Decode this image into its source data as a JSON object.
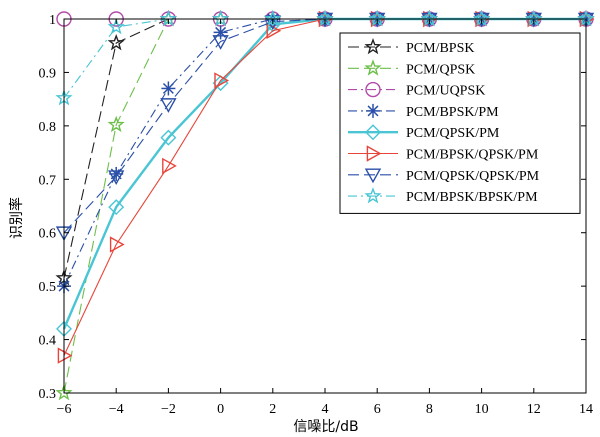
{
  "chart_data": {
    "type": "line",
    "title": "",
    "xlabel": "信噪比/dB",
    "ylabel": "识别率",
    "xlim": [
      -6,
      14
    ],
    "ylim": [
      0.3,
      1.0
    ],
    "xticks": [
      -6,
      -4,
      -2,
      0,
      2,
      4,
      6,
      8,
      10,
      12,
      14
    ],
    "xtick_labels": [
      "−6",
      "−4",
      "−2",
      "0",
      "2",
      "4",
      "6",
      "8",
      "10",
      "12",
      "14"
    ],
    "yticks": [
      0.3,
      0.4,
      0.5,
      0.6,
      0.7,
      0.8,
      0.9,
      1.0
    ],
    "ytick_labels": [
      "0.3",
      "0.4",
      "0.5",
      "0.6",
      "0.7",
      "0.8",
      "0.9",
      "1"
    ],
    "grid": false,
    "legend_position": "top-right",
    "x": [
      -6,
      -4,
      -2,
      0,
      2,
      4,
      6,
      8,
      10,
      12,
      14
    ],
    "series": [
      {
        "name": "PCM/BPSK",
        "color": "#222222",
        "dash": "long-dash",
        "marker": "star",
        "values": [
          0.515,
          0.955,
          1.0,
          1.0,
          1.0,
          1.0,
          1.0,
          1.0,
          1.0,
          1.0,
          1.0
        ]
      },
      {
        "name": "PCM/QPSK",
        "color": "#6dbf4b",
        "dash": "long-dash",
        "marker": "star",
        "values": [
          0.3,
          0.802,
          1.0,
          1.0,
          1.0,
          1.0,
          1.0,
          1.0,
          1.0,
          1.0,
          1.0
        ]
      },
      {
        "name": "PCM/UQPSK",
        "color": "#b24aa8",
        "dash": "dash-dot",
        "marker": "circle",
        "values": [
          1.0,
          1.0,
          1.0,
          1.0,
          1.0,
          1.0,
          1.0,
          1.0,
          1.0,
          1.0,
          1.0
        ]
      },
      {
        "name": "PCM/BPSK/PM",
        "color": "#2a4fa8",
        "dash": "dash-dot",
        "marker": "asterisk",
        "values": [
          0.5,
          0.71,
          0.87,
          0.975,
          1.0,
          1.0,
          1.0,
          1.0,
          1.0,
          1.0,
          1.0
        ]
      },
      {
        "name": "PCM/QPSK/PM",
        "color": "#49c5d4",
        "dash": "solid-thick",
        "marker": "diamond",
        "values": [
          0.42,
          0.648,
          0.778,
          0.88,
          0.99,
          1.0,
          1.0,
          1.0,
          1.0,
          1.0,
          1.0
        ]
      },
      {
        "name": "PCM/BPSK/QPSK/PM",
        "color": "#e8453a",
        "dash": "solid",
        "marker": "triangle-right",
        "values": [
          0.37,
          0.578,
          0.725,
          0.885,
          0.978,
          1.0,
          1.0,
          1.0,
          1.0,
          1.0,
          1.0
        ]
      },
      {
        "name": "PCM/QPSK/QPSK/PM",
        "color": "#2a4fa8",
        "dash": "long-dash",
        "marker": "triangle-down",
        "values": [
          0.6,
          0.705,
          0.84,
          0.958,
          0.995,
          1.0,
          1.0,
          1.0,
          1.0,
          1.0,
          1.0
        ]
      },
      {
        "name": "PCM/BPSK/BPSK/PM",
        "color": "#49c5d4",
        "dash": "dash-dot",
        "marker": "star",
        "values": [
          0.852,
          0.985,
          1.0,
          1.0,
          1.0,
          1.0,
          1.0,
          1.0,
          1.0,
          1.0,
          1.0
        ]
      }
    ]
  }
}
